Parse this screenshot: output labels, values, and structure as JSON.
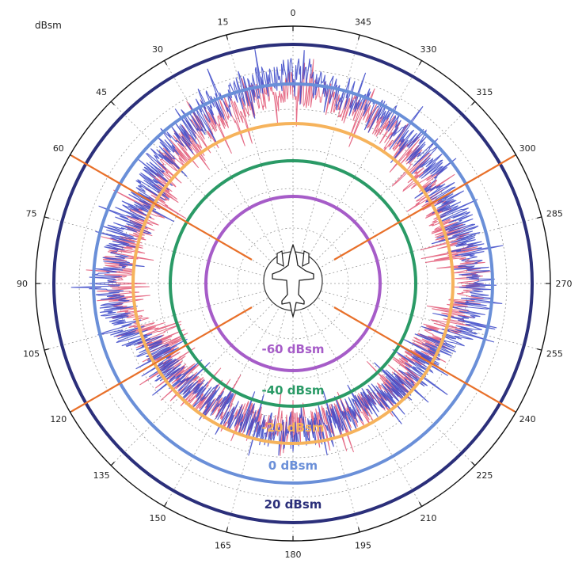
{
  "chart_data": {
    "type": "polar",
    "unit": "dBsm",
    "angle_ticks": [
      "0",
      "15",
      "30",
      "45",
      "60",
      "75",
      "90",
      "105",
      "120",
      "135",
      "150",
      "165",
      "180",
      "195",
      "210",
      "225",
      "240",
      "255",
      "270",
      "285",
      "300",
      "315",
      "330",
      "345"
    ],
    "angle_direction": "counterclockwise",
    "zero_location": "top",
    "grid": true,
    "reference_rings": [
      {
        "label": "20 dBsm",
        "value": 20,
        "color": "#2b2f7a"
      },
      {
        "label": "0 dBsm",
        "value": 0,
        "color": "#6a8fd8"
      },
      {
        "label": "-20 dBsm",
        "value": -20,
        "color": "#f6b35c"
      },
      {
        "label": "-40 dBsm",
        "value": -40,
        "color": "#2a9a66"
      },
      {
        "label": "-60 dBsm",
        "value": -60,
        "color": "#a65cc8"
      }
    ],
    "sector_lines_deg": [
      60,
      120,
      240,
      300
    ],
    "sector_line_color": "#e8702a",
    "series": [
      {
        "color": "#3a46c8",
        "sector_mean_dbsm": [
          {
            "angle": 0,
            "value": 14
          },
          {
            "angle": 20,
            "value": 6
          },
          {
            "angle": 40,
            "value": 2
          },
          {
            "angle": 60,
            "value": -6
          },
          {
            "angle": 80,
            "value": -2
          },
          {
            "angle": 90,
            "value": 2
          },
          {
            "angle": 100,
            "value": -2
          },
          {
            "angle": 120,
            "value": -16
          },
          {
            "angle": 150,
            "value": -22
          },
          {
            "angle": 180,
            "value": -18
          },
          {
            "angle": 210,
            "value": -22
          },
          {
            "angle": 240,
            "value": -16
          },
          {
            "angle": 260,
            "value": -2
          },
          {
            "angle": 270,
            "value": 2
          },
          {
            "angle": 280,
            "value": -2
          },
          {
            "angle": 300,
            "value": -6
          },
          {
            "angle": 320,
            "value": 2
          },
          {
            "angle": 340,
            "value": 6
          },
          {
            "angle": 360,
            "value": 14
          }
        ]
      },
      {
        "color": "#e04a6a",
        "sector_mean_dbsm": [
          {
            "angle": 0,
            "value": 6
          },
          {
            "angle": 20,
            "value": 0
          },
          {
            "angle": 40,
            "value": -4
          },
          {
            "angle": 60,
            "value": -12
          },
          {
            "angle": 90,
            "value": -4
          },
          {
            "angle": 120,
            "value": -20
          },
          {
            "angle": 180,
            "value": -22
          },
          {
            "angle": 240,
            "value": -20
          },
          {
            "angle": 270,
            "value": -4
          },
          {
            "angle": 300,
            "value": -12
          },
          {
            "angle": 320,
            "value": -4
          },
          {
            "angle": 340,
            "value": 0
          },
          {
            "angle": 360,
            "value": 6
          }
        ]
      }
    ]
  }
}
